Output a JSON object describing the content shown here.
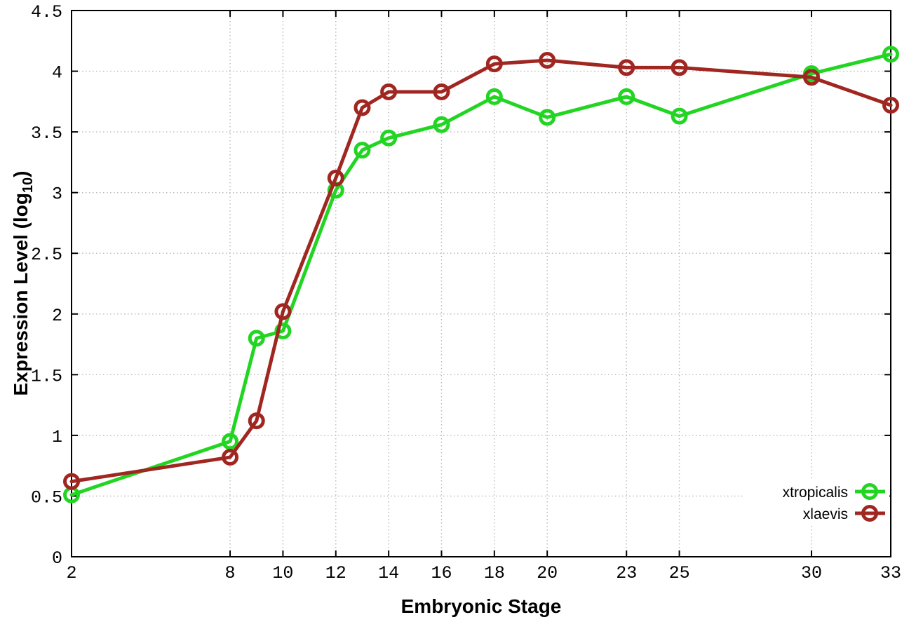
{
  "chart_data": {
    "type": "line",
    "title": "",
    "xlabel": "Embryonic Stage",
    "ylabel_pre": "Expression Level (log",
    "ylabel_sub": "10",
    "ylabel_post": ")",
    "xlim": [
      2,
      33
    ],
    "ylim": [
      0,
      4.5
    ],
    "x_ticks": [
      2,
      8,
      10,
      12,
      14,
      16,
      18,
      20,
      23,
      25,
      30,
      33
    ],
    "y_ticks": [
      0,
      0.5,
      1,
      1.5,
      2,
      2.5,
      3,
      3.5,
      4,
      4.5
    ],
    "grid": true,
    "grid_style": "dotted",
    "legend_position": "bottom-right",
    "x": [
      2,
      8,
      9,
      10,
      12,
      13,
      14,
      16,
      18,
      20,
      23,
      25,
      30,
      33
    ],
    "series": [
      {
        "name": "xtropicalis",
        "color": "#23d523",
        "marker": "open-circle",
        "values": [
          0.51,
          0.95,
          1.8,
          1.86,
          3.02,
          3.35,
          3.45,
          3.56,
          3.79,
          3.62,
          3.79,
          3.63,
          3.98,
          4.14
        ]
      },
      {
        "name": "xlaevis",
        "color": "#a02721",
        "marker": "open-circle",
        "values": [
          0.62,
          0.82,
          1.12,
          2.02,
          3.12,
          3.7,
          3.83,
          3.83,
          4.06,
          4.09,
          4.03,
          4.03,
          3.95,
          3.72
        ]
      }
    ]
  },
  "style": {
    "border_color": "#000000",
    "grid_color": "#b8b8b8",
    "background": "#ffffff",
    "line_width": 5,
    "marker_radius": 9.5
  }
}
